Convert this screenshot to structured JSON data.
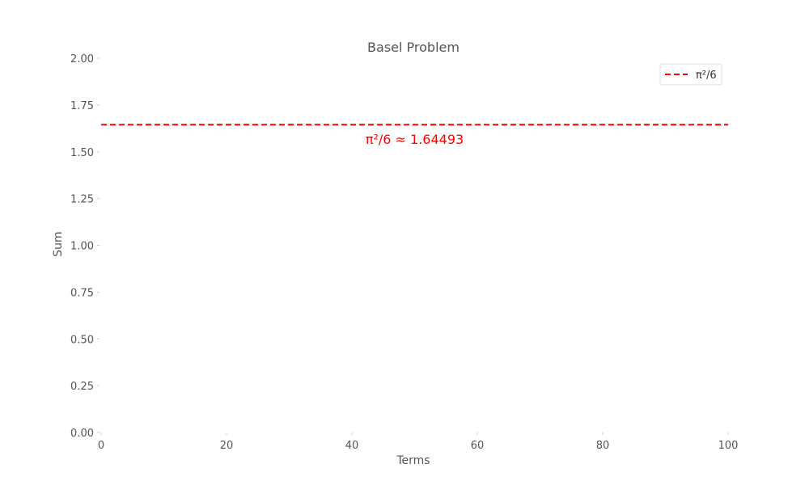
{
  "chart_data": {
    "type": "line",
    "title": "Basel Problem",
    "xlabel": "Terms",
    "ylabel": "Sum",
    "xlim": [
      0,
      100
    ],
    "ylim": [
      0,
      2
    ],
    "x_ticks": [
      "0",
      "20",
      "40",
      "60",
      "80",
      "100"
    ],
    "y_ticks": [
      "0.00",
      "0.25",
      "0.50",
      "0.75",
      "1.00",
      "1.25",
      "1.50",
      "1.75",
      "2.00"
    ],
    "grid": false,
    "legend_position": "top-right",
    "series": [
      {
        "name": "π²/6",
        "style": "dashed",
        "color": "#ff0000",
        "x": [
          0,
          100
        ],
        "values": [
          1.64493,
          1.64493
        ]
      }
    ],
    "annotations": [
      {
        "text": "π²/6 ≈ 1.64493",
        "x": 50,
        "y": 1.64493,
        "color": "#ff0000"
      }
    ]
  }
}
